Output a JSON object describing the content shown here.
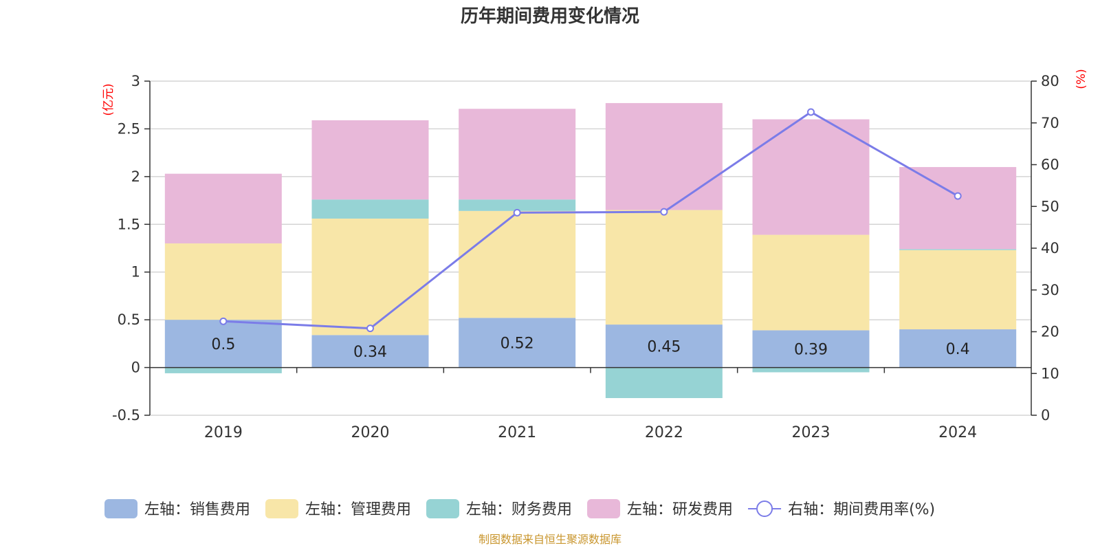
{
  "chart_data": {
    "type": "bar",
    "stacked": true,
    "title": "历年期间费用变化情况",
    "categories": [
      "2019",
      "2020",
      "2021",
      "2022",
      "2023",
      "2024"
    ],
    "left_axis": {
      "unit": "(亿元)",
      "ylim": [
        -0.5,
        3
      ],
      "ticks": [
        "3",
        "2.5",
        "2",
        "1.5",
        "1",
        "0.5",
        "0",
        "-0.5"
      ],
      "tick_values": [
        3,
        2.5,
        2,
        1.5,
        1,
        0.5,
        0,
        -0.5
      ]
    },
    "right_axis": {
      "unit": "(%)",
      "ylim": [
        0,
        80
      ],
      "ticks": [
        "80",
        "70",
        "60",
        "50",
        "40",
        "30",
        "20",
        "10",
        "0"
      ],
      "tick_values": [
        80,
        70,
        60,
        50,
        40,
        30,
        20,
        10,
        0
      ]
    },
    "series": [
      {
        "name": "左轴：销售费用",
        "color": "#9cb7e1",
        "axis": "left",
        "values": [
          0.5,
          0.34,
          0.52,
          0.45,
          0.39,
          0.4
        ],
        "labels": [
          "0.5",
          "0.34",
          "0.52",
          "0.45",
          "0.39",
          "0.4"
        ]
      },
      {
        "name": "左轴：管理费用",
        "color": "#f8e6a8",
        "axis": "left",
        "values": [
          0.8,
          1.22,
          1.12,
          1.2,
          1.0,
          0.83
        ]
      },
      {
        "name": "左轴：财务费用",
        "color": "#96d3d4",
        "axis": "left",
        "values": [
          -0.06,
          0.2,
          0.12,
          -0.32,
          -0.05,
          0.01
        ]
      },
      {
        "name": "左轴：研发费用",
        "color": "#e8b8d9",
        "axis": "left",
        "values": [
          0.73,
          0.83,
          0.95,
          1.12,
          1.21,
          0.86
        ]
      }
    ],
    "line": {
      "name": "右轴：期间费用率(%)",
      "color": "#7b7ce8",
      "axis": "right",
      "values": [
        22.5,
        20.8,
        48.5,
        48.7,
        72.6,
        52.5
      ]
    }
  },
  "source": "制图数据来自恒生聚源数据库"
}
